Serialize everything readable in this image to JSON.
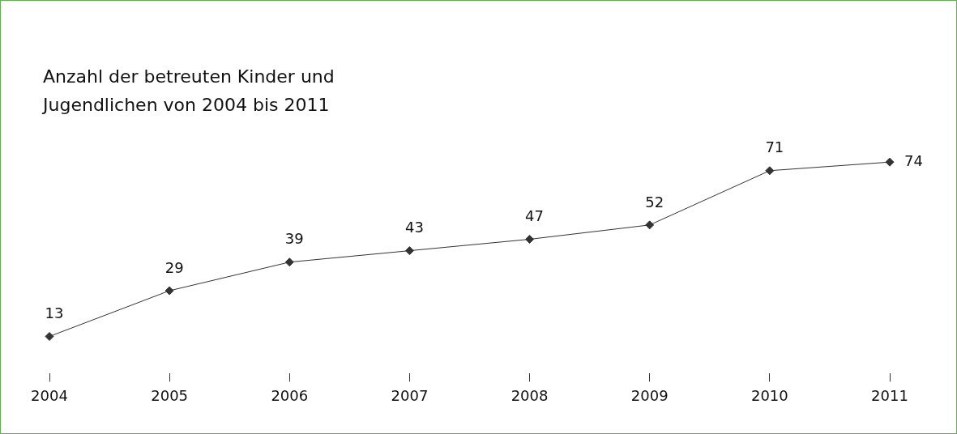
{
  "chart_data": {
    "type": "line",
    "title": "Anzahl der betreuten Kinder und Jugendlichen von 2004 bis 2011",
    "categories": [
      "2004",
      "2005",
      "2006",
      "2007",
      "2008",
      "2009",
      "2010",
      "2011"
    ],
    "series": [
      {
        "color": "#333333",
        "values": [
          13,
          29,
          39,
          43,
          47,
          52,
          71,
          74
        ]
      }
    ],
    "marker": "diamond",
    "data_labels": true,
    "grid": false
  }
}
